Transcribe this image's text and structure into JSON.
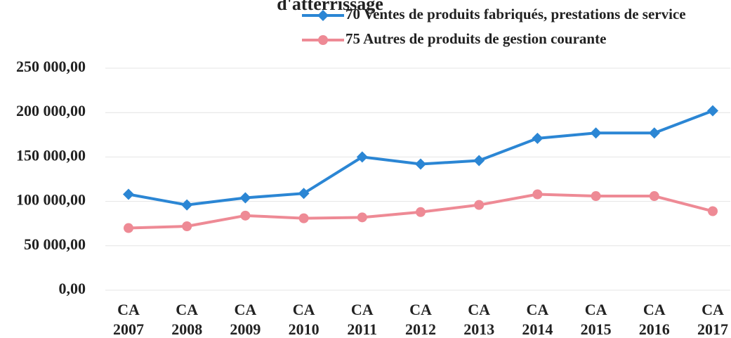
{
  "chart_data": {
    "type": "line",
    "title": "d'atterrissage",
    "categories": [
      "CA 2007",
      "CA 2008",
      "CA 2009",
      "CA 2010",
      "CA 2011",
      "CA 2012",
      "CA 2013",
      "CA 2014",
      "CA 2015",
      "CA 2016",
      "CA 2017"
    ],
    "series": [
      {
        "name": "70 Ventes de produits fabriqués, prestations de service",
        "color": "#2b86d4",
        "marker": "diamond",
        "values": [
          108000,
          96000,
          104000,
          109000,
          150000,
          142000,
          146000,
          171000,
          177000,
          177000,
          202000
        ]
      },
      {
        "name": "75 Autres de produits de gestion courante",
        "color": "#ee8a95",
        "marker": "circle",
        "values": [
          70000,
          72000,
          84000,
          81000,
          82000,
          88000,
          96000,
          108000,
          106000,
          106000,
          89000
        ]
      }
    ],
    "ylim": [
      0,
      250000
    ],
    "yticks": [
      {
        "value": 0,
        "label": "0,00"
      },
      {
        "value": 50000,
        "label": "50 000,00"
      },
      {
        "value": 100000,
        "label": "100 000,00"
      },
      {
        "value": 150000,
        "label": "150 000,00"
      },
      {
        "value": 200000,
        "label": "200 000,00"
      },
      {
        "value": 250000,
        "label": "250 000,00"
      }
    ],
    "grid": true,
    "legend": "top-right"
  }
}
